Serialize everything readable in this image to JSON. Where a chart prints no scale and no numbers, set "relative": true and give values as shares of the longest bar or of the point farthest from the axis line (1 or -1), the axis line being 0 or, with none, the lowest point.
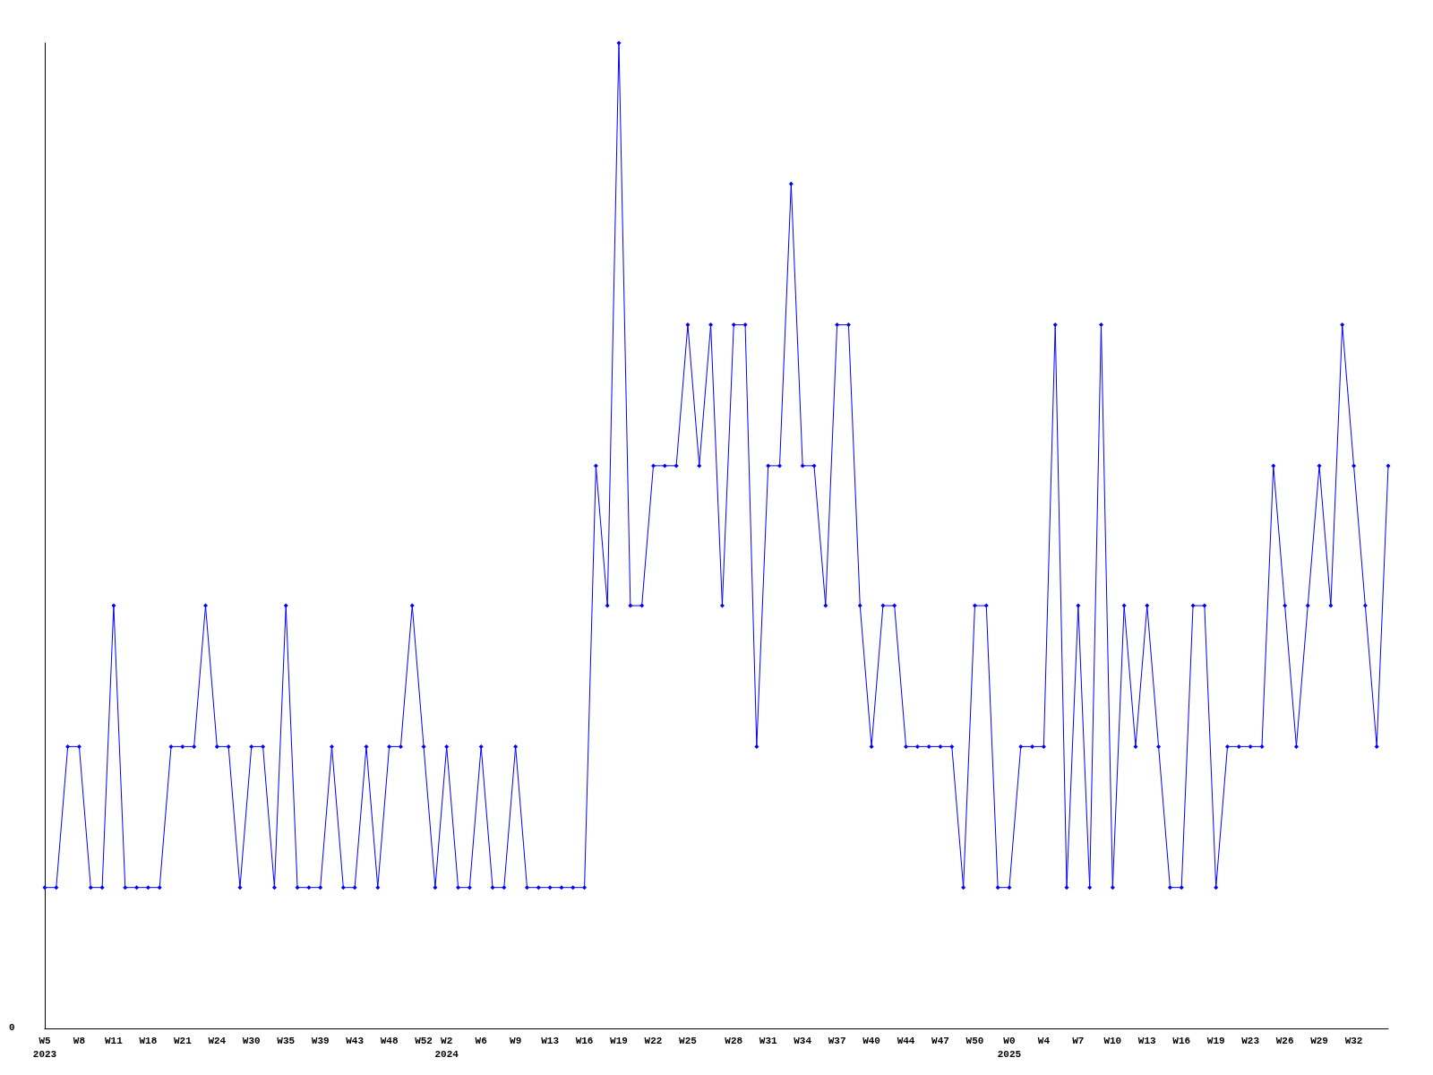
{
  "chart_data": {
    "type": "line",
    "relative": true,
    "marker": "diamond",
    "line_style": "solid",
    "annotations": [
      "0"
    ],
    "categories": [
      "W5\n2023",
      null,
      null,
      "W8",
      null,
      null,
      "W11",
      null,
      null,
      "W18",
      null,
      null,
      "W21",
      null,
      null,
      "W24",
      null,
      null,
      "W30",
      null,
      null,
      "W35",
      null,
      null,
      "W39",
      null,
      null,
      "W43",
      null,
      null,
      "W48",
      null,
      null,
      "W52",
      null,
      "W2\n2024",
      null,
      null,
      "W6",
      null,
      null,
      "W9",
      null,
      null,
      "W13",
      null,
      null,
      "W16",
      null,
      null,
      "W19",
      null,
      null,
      "W22",
      null,
      null,
      "W25",
      null,
      null,
      null,
      "W28",
      null,
      null,
      "W31",
      null,
      null,
      "W34",
      null,
      null,
      "W37",
      null,
      null,
      "W40",
      null,
      null,
      "W44",
      null,
      null,
      "W47",
      null,
      null,
      "W50",
      null,
      null,
      "W0\n2025",
      null,
      null,
      "W4",
      null,
      null,
      "W7",
      null,
      null,
      "W10",
      null,
      null,
      "W13",
      null,
      null,
      "W16",
      null,
      null,
      "W19",
      null,
      null,
      "W23",
      null,
      null,
      "W26",
      null,
      null,
      "W29",
      null,
      null,
      "W32",
      null,
      null,
      null
    ],
    "series": [
      {
        "color": "#0000ff",
        "values": [
          0.143,
          0.143,
          0.286,
          0.286,
          0.143,
          0.143,
          0.429,
          0.143,
          0.143,
          0.143,
          0.143,
          0.286,
          0.286,
          0.286,
          0.429,
          0.286,
          0.286,
          0.143,
          0.286,
          0.286,
          0.143,
          0.429,
          0.143,
          0.143,
          0.143,
          0.286,
          0.143,
          0.143,
          0.286,
          0.143,
          0.286,
          0.286,
          0.429,
          0.286,
          0.143,
          0.286,
          0.143,
          0.143,
          0.286,
          0.143,
          0.143,
          0.286,
          0.143,
          0.143,
          0.143,
          0.143,
          0.143,
          0.143,
          0.571,
          0.429,
          1,
          0.429,
          0.429,
          0.571,
          0.571,
          0.571,
          0.714,
          0.571,
          0.714,
          0.429,
          0.714,
          0.714,
          0.286,
          0.571,
          0.571,
          0.857,
          0.571,
          0.571,
          0.429,
          0.714,
          0.714,
          0.429,
          0.286,
          0.429,
          0.429,
          0.286,
          0.286,
          0.286,
          0.286,
          0.286,
          0.143,
          0.429,
          0.429,
          0.143,
          0.143,
          0.286,
          0.286,
          0.286,
          0.714,
          0.143,
          0.429,
          0.143,
          0.714,
          0.143,
          0.429,
          0.286,
          0.429,
          0.286,
          0.143,
          0.143,
          0.429,
          0.429,
          0.143,
          0.286,
          0.286,
          0.286,
          0.286,
          0.571,
          0.429,
          0.286,
          0.429,
          0.571,
          0.429,
          0.714,
          0.571,
          0.429,
          0.286,
          0.571
        ]
      }
    ]
  }
}
